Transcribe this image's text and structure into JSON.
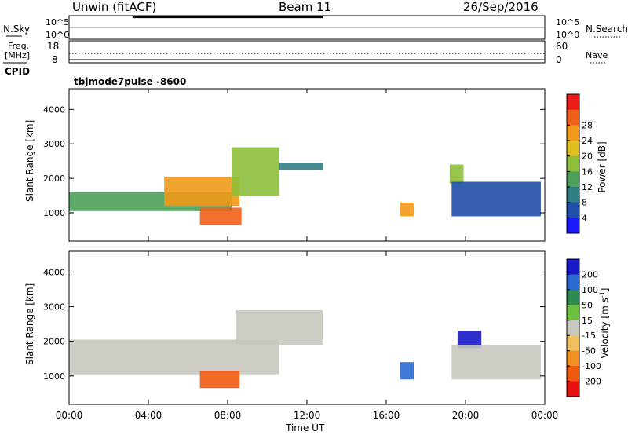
{
  "header": {
    "station": "Unwin (fitACF)",
    "beam": "Beam 11",
    "date": "26/Sep/2016"
  },
  "side_labels": {
    "nsky": "N.Sky",
    "nsearch": "N.Search",
    "freq_line1": "Freq.",
    "freq_line2": "[MHz]",
    "nave": "Nave",
    "cpid": "CPID"
  },
  "noise_ticks": {
    "top": "10^5",
    "bottom": "10^0"
  },
  "freq_ticks": {
    "left_top": "18",
    "left_bottom": "8",
    "right_top": "60",
    "right_bottom": "0"
  },
  "mode_label": "tbjmode7pulse  -8600",
  "power_panel": {
    "ylabel": "Slant Range [km]",
    "yticks": [
      1000,
      2000,
      3000,
      4000
    ],
    "colorbar_label": "Power [dB]",
    "colorbar_ticks": [
      "4",
      "8",
      "12",
      "16",
      "20",
      "24",
      "28"
    ],
    "colors": [
      "#1a1aff",
      "#1f4fa8",
      "#2f7f84",
      "#4ca05a",
      "#8dbf3a",
      "#e0c020",
      "#f09a18",
      "#f0601a",
      "#ee1a1a"
    ]
  },
  "velocity_panel": {
    "ylabel": "Slant Range [km]",
    "yticks": [
      1000,
      2000,
      3000,
      4000
    ],
    "colorbar_label": "Velocity [m s",
    "colorbar_sup": "-1",
    "colorbar_label_end": "]",
    "colorbar_ticks": [
      "200",
      "100",
      "50",
      "15",
      "-15",
      "-50",
      "-100",
      "-200"
    ],
    "colors": [
      "#1818c8",
      "#2a6ad0",
      "#2e8a50",
      "#6cc040",
      "#c8c8c0",
      "#f0c060",
      "#f09020",
      "#f05a10",
      "#e81010"
    ]
  },
  "xaxis": {
    "label": "Time UT",
    "ticks": [
      "00:00",
      "04:00",
      "08:00",
      "12:00",
      "16:00",
      "20:00",
      "00:00"
    ]
  },
  "chart_data": {
    "type": "heatmap",
    "x_range_hours": [
      0,
      24
    ],
    "y_range_km": [
      180,
      4600
    ],
    "power_features": [
      {
        "t0": 0.0,
        "t1": 8.2,
        "r0": 1050,
        "r1": 1600,
        "power_db": 14
      },
      {
        "t0": 4.8,
        "t1": 8.6,
        "r0": 1200,
        "r1": 2050,
        "power_db": 26
      },
      {
        "t0": 6.6,
        "t1": 8.7,
        "r0": 650,
        "r1": 1150,
        "power_db": 30
      },
      {
        "t0": 8.2,
        "t1": 10.6,
        "r0": 1500,
        "r1": 2900,
        "power_db": 16
      },
      {
        "t0": 10.6,
        "t1": 12.8,
        "r0": 2250,
        "r1": 2450,
        "power_db": 8
      },
      {
        "t0": 16.7,
        "t1": 17.4,
        "r0": 900,
        "r1": 1300,
        "power_db": 24
      },
      {
        "t0": 19.2,
        "t1": 19.9,
        "r0": 1850,
        "r1": 2400,
        "power_db": 18
      },
      {
        "t0": 19.3,
        "t1": 23.8,
        "r0": 900,
        "r1": 1900,
        "power_db": 6
      }
    ],
    "velocity_features": [
      {
        "t0": 0.0,
        "t1": 10.6,
        "r0": 1050,
        "r1": 2050,
        "velocity_ms": 0
      },
      {
        "t0": 6.6,
        "t1": 8.6,
        "r0": 650,
        "r1": 1150,
        "velocity_ms": -200
      },
      {
        "t0": 8.4,
        "t1": 12.8,
        "r0": 1900,
        "r1": 2900,
        "velocity_ms": 0
      },
      {
        "t0": 16.7,
        "t1": 17.4,
        "r0": 900,
        "r1": 1400,
        "velocity_ms": 150
      },
      {
        "t0": 19.6,
        "t1": 20.8,
        "r0": 1800,
        "r1": 2300,
        "velocity_ms": 220
      },
      {
        "t0": 19.3,
        "t1": 23.8,
        "r0": 900,
        "r1": 1900,
        "velocity_ms": 0
      }
    ]
  }
}
